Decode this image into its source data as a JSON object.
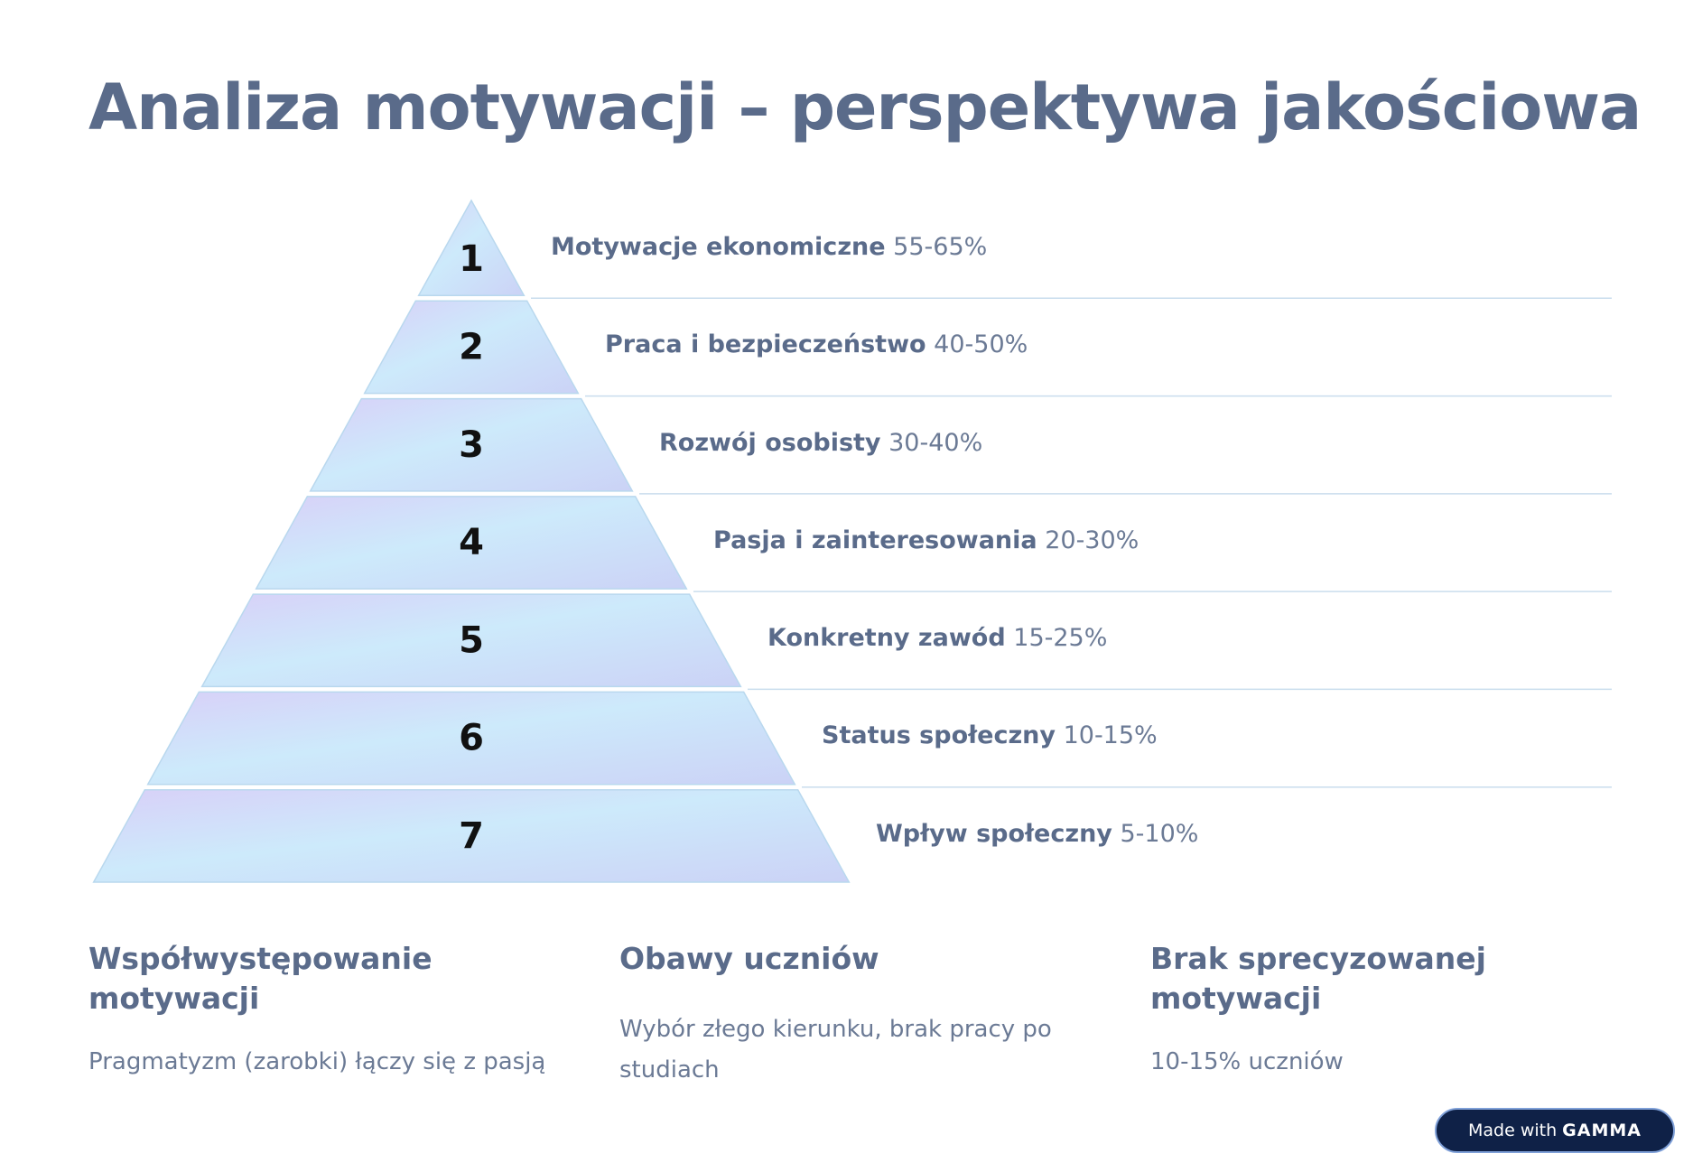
{
  "title": "Analiza motywacji – perspektywa jakościowa",
  "pyramid": {
    "levels": [
      {
        "number": "1",
        "name": "Motywacje ekonomiczne",
        "percent": "55-65%"
      },
      {
        "number": "2",
        "name": "Praca i bezpieczeństwo",
        "percent": "40-50%"
      },
      {
        "number": "3",
        "name": "Rozwój osobisty",
        "percent": "30-40%"
      },
      {
        "number": "4",
        "name": "Pasja i zainteresowania",
        "percent": "20-30%"
      },
      {
        "number": "5",
        "name": "Konkretny zawód",
        "percent": "15-25%"
      },
      {
        "number": "6",
        "name": "Status społeczny",
        "percent": "10-15%"
      },
      {
        "number": "7",
        "name": "Wpływ społeczny",
        "percent": "5-10%"
      }
    ]
  },
  "columns": [
    {
      "heading": "Współwystępowanie motywacji",
      "text": "Pragmatyzm (zarobki) łączy się z pasją"
    },
    {
      "heading": "Obawy uczniów",
      "text": "Wybór złego kierunku, brak pracy po studiach"
    },
    {
      "heading": "Brak sprecyzowanej motywacji",
      "text": "10-15% uczniów"
    }
  ],
  "badge": {
    "prefix": "Made with",
    "brand": "GAMMA"
  },
  "colors": {
    "title": "#5a6b8a",
    "tier_fill_a": "#d6d2f7",
    "tier_fill_b": "#cdeafb",
    "tier_stroke": "#b9d8ee",
    "divider": "#c9dded",
    "badge_bg": "#0f2147"
  }
}
